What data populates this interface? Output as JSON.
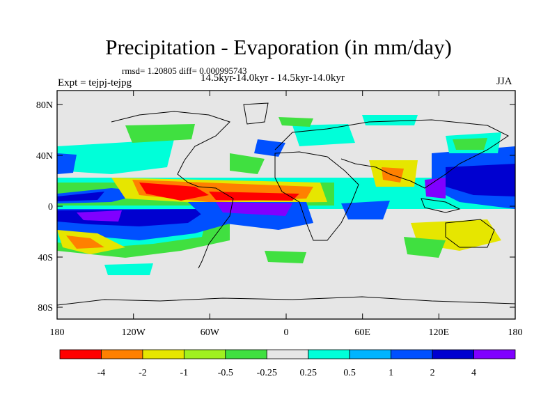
{
  "header": {
    "title": "Precipitation - Evaporation (in mm/day)",
    "stats": "rmsd= 1.20805 diff= 0.000995743",
    "experiment": "Expt = tejpj-tejpg",
    "period": "14.5kyr-14.0kyr - 14.5kyr-14.0kyr",
    "season": "JJA"
  },
  "axes": {
    "y_ticks": [
      "80N",
      "40N",
      "0",
      "40S",
      "80S"
    ],
    "x_ticks": [
      "180",
      "120W",
      "60W",
      "0",
      "60E",
      "120E",
      "180"
    ]
  },
  "colorbar": {
    "labels": [
      "-4",
      "-2",
      "-1",
      "-0.5",
      "-0.25",
      "0.25",
      "0.5",
      "1",
      "2",
      "4"
    ],
    "colors": [
      "#ff0000",
      "#ff8000",
      "#e6e600",
      "#a0f020",
      "#40e040",
      "#e6e6e6",
      "#00ffd9",
      "#00b4ff",
      "#0050ff",
      "#0000d0",
      "#8000ff"
    ]
  },
  "map_regions": {
    "ocean_background": "#e6e6e6"
  }
}
